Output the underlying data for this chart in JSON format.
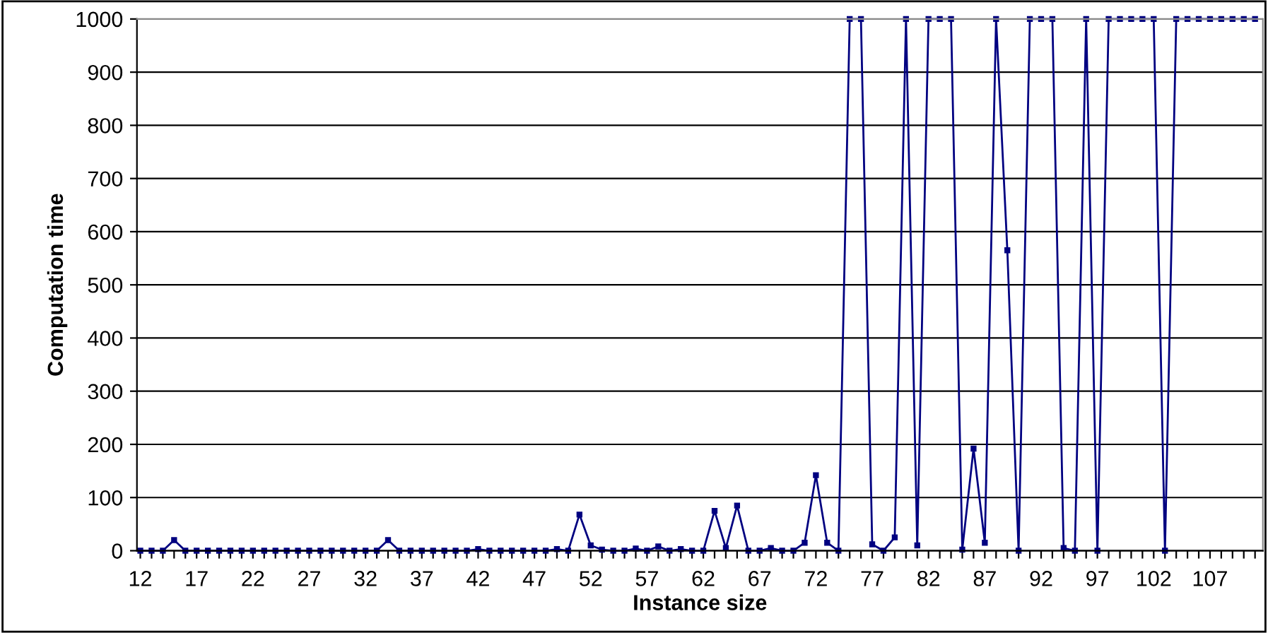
{
  "chart_data": {
    "type": "line",
    "xlabel": "Instance size",
    "ylabel": "Computation time",
    "categories": [
      "12",
      null,
      null,
      null,
      null,
      "17",
      null,
      null,
      null,
      null,
      "22",
      null,
      null,
      null,
      null,
      "27",
      null,
      null,
      null,
      null,
      "32",
      null,
      null,
      null,
      null,
      "37",
      null,
      null,
      null,
      null,
      "42",
      null,
      null,
      null,
      null,
      "47",
      null,
      null,
      null,
      null,
      "52",
      null,
      null,
      null,
      null,
      "57",
      null,
      null,
      null,
      null,
      "62",
      null,
      null,
      null,
      null,
      "67",
      null,
      null,
      null,
      null,
      "72",
      null,
      null,
      null,
      null,
      "77",
      null,
      null,
      null,
      null,
      "82",
      null,
      null,
      null,
      null,
      "87",
      null,
      null,
      null,
      null,
      "92",
      null,
      null,
      null,
      null,
      "97",
      null,
      null,
      null,
      null,
      "102",
      null,
      null,
      null,
      null,
      "107",
      null,
      null,
      null,
      null
    ],
    "series": [
      {
        "color": "#000080",
        "values": [
          0,
          0,
          0,
          20,
          0,
          0,
          0,
          0,
          0,
          0,
          0,
          0,
          0,
          0,
          0,
          0,
          0,
          0,
          0,
          0,
          0,
          0,
          20,
          0,
          0,
          0,
          0,
          0,
          0,
          0,
          3,
          0,
          0,
          0,
          0,
          0,
          0,
          3,
          0,
          68,
          10,
          2,
          0,
          0,
          4,
          0,
          8,
          0,
          3,
          0,
          0,
          75,
          5,
          85,
          0,
          0,
          5,
          0,
          0,
          15,
          142,
          15,
          0,
          1000,
          1000,
          12,
          0,
          25,
          1000,
          10,
          1000,
          1000,
          1000,
          2,
          192,
          15,
          1000,
          565,
          0,
          1000,
          1000,
          1000,
          5,
          0,
          1000,
          0,
          1000,
          1000,
          1000,
          1000,
          1000,
          0,
          1000,
          1000,
          1000,
          1000,
          1000,
          1000,
          1000,
          1000
        ]
      }
    ],
    "ylim": [
      0,
      1000
    ],
    "yticks": [
      0,
      100,
      200,
      300,
      400,
      500,
      600,
      700,
      800,
      900,
      1000
    ],
    "grid": "y",
    "marker": "square",
    "line_style": "solid"
  }
}
